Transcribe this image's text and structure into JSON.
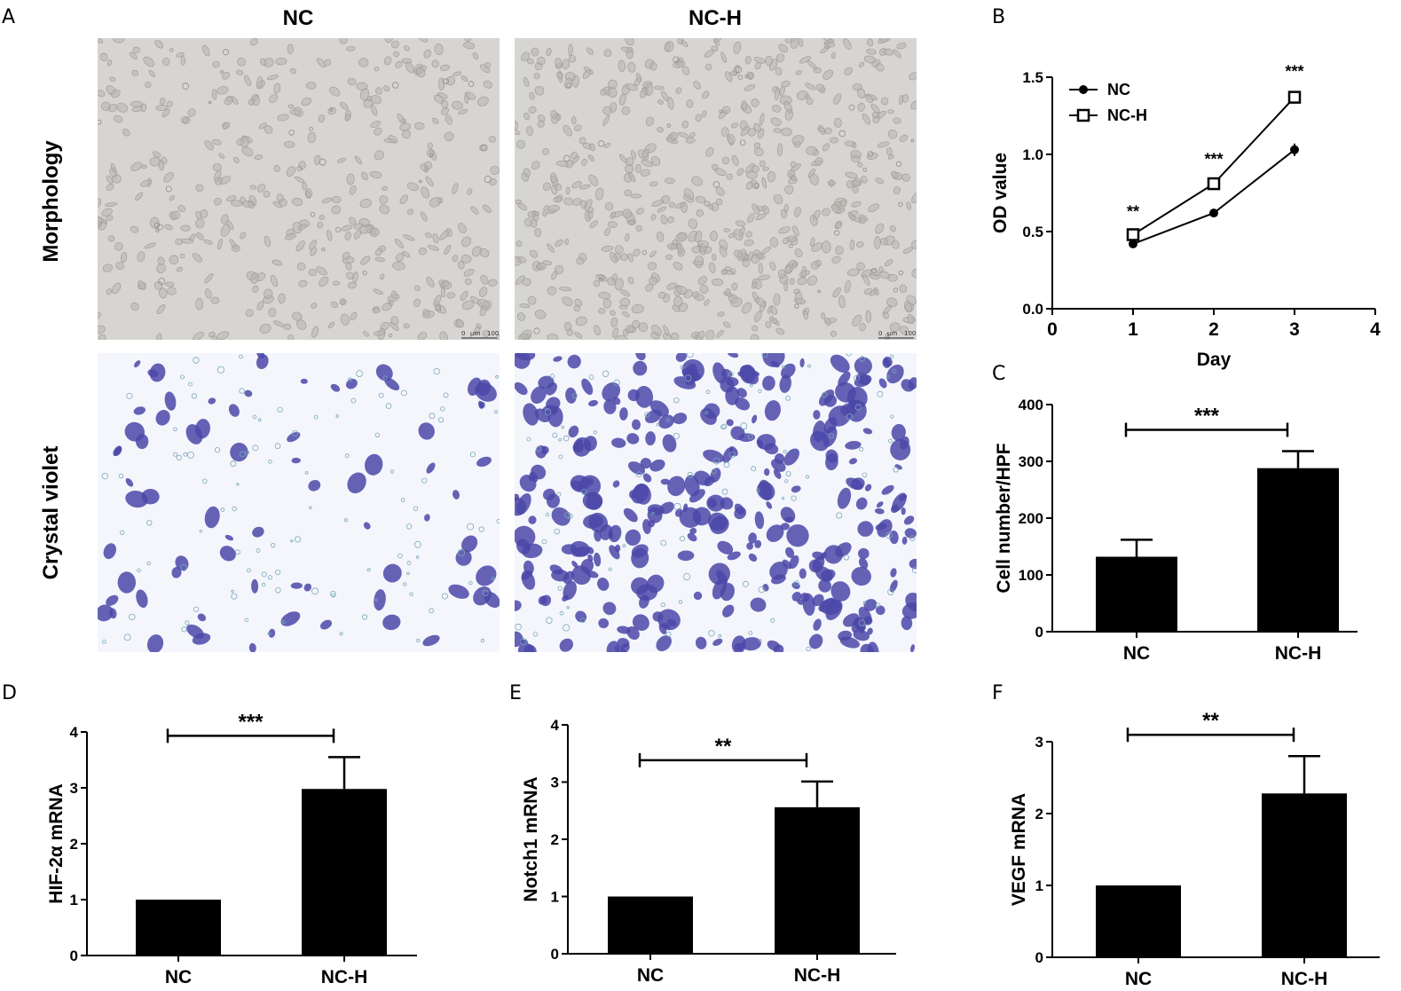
{
  "panel_letters": [
    "A",
    "B",
    "C",
    "D",
    "E",
    "F"
  ],
  "micrographs": {
    "columns": [
      "NC",
      "NC-H"
    ],
    "rows": [
      "Morphology",
      "Crystal violet"
    ],
    "scale_bar": {
      "zero": "0",
      "unit": "µm",
      "value": "100"
    },
    "colors": {
      "phase_bg": "#d7d5d2",
      "phase_cell": "#b7b4af",
      "stain_bg": "#f4f6fc",
      "stain_cell": "#4b48a8"
    }
  },
  "chart_data": [
    {
      "id": "B",
      "type": "line",
      "xlabel": "Day",
      "ylabel": "OD value",
      "xlim": [
        0,
        4
      ],
      "ylim": [
        0,
        1.5
      ],
      "xticks": [
        "0",
        "1",
        "2",
        "3",
        "4"
      ],
      "yticks": [
        "0.0",
        "0.5",
        "1.0",
        "1.5"
      ],
      "x": [
        1,
        2,
        3
      ],
      "series": [
        {
          "name": "NC",
          "marker": "filled-circle",
          "values": [
            0.42,
            0.62,
            1.03
          ],
          "errors": [
            0.01,
            0.01,
            0.04
          ]
        },
        {
          "name": "NC-H",
          "marker": "open-square",
          "values": [
            0.48,
            0.81,
            1.37
          ],
          "errors": [
            0.01,
            0.02,
            0.03
          ]
        }
      ],
      "annotations": [
        "**",
        "***",
        "***"
      ],
      "legend": "top-left"
    },
    {
      "id": "C",
      "type": "bar",
      "categories": [
        "NC",
        "NC-H"
      ],
      "values": [
        132,
        288
      ],
      "errors": [
        30,
        30
      ],
      "ylabel": "Cell number/HPF",
      "ylim": [
        0,
        400
      ],
      "yticks": [
        "0",
        "100",
        "200",
        "300",
        "400"
      ],
      "significance": "***"
    },
    {
      "id": "D",
      "type": "bar",
      "categories": [
        "NC",
        "NC-H"
      ],
      "values": [
        1.0,
        2.98
      ],
      "errors": [
        0,
        0.57
      ],
      "ylabel": "HIF-2α  mRNA",
      "ylim": [
        0,
        4
      ],
      "yticks": [
        "0",
        "1",
        "2",
        "3",
        "4"
      ],
      "significance": "***"
    },
    {
      "id": "E",
      "type": "bar",
      "categories": [
        "NC",
        "NC-H"
      ],
      "values": [
        1.0,
        2.56
      ],
      "errors": [
        0,
        0.45
      ],
      "ylabel": "Notch1 mRNA",
      "ylim": [
        0,
        4
      ],
      "yticks": [
        "0",
        "1",
        "2",
        "3",
        "4"
      ],
      "significance": "**"
    },
    {
      "id": "F",
      "type": "bar",
      "categories": [
        "NC",
        "NC-H"
      ],
      "values": [
        1.0,
        2.28
      ],
      "errors": [
        0,
        0.52
      ],
      "ylabel": "VEGF mRNA",
      "ylim": [
        0,
        3
      ],
      "yticks": [
        "0",
        "1",
        "2",
        "3"
      ],
      "significance": "**"
    }
  ]
}
